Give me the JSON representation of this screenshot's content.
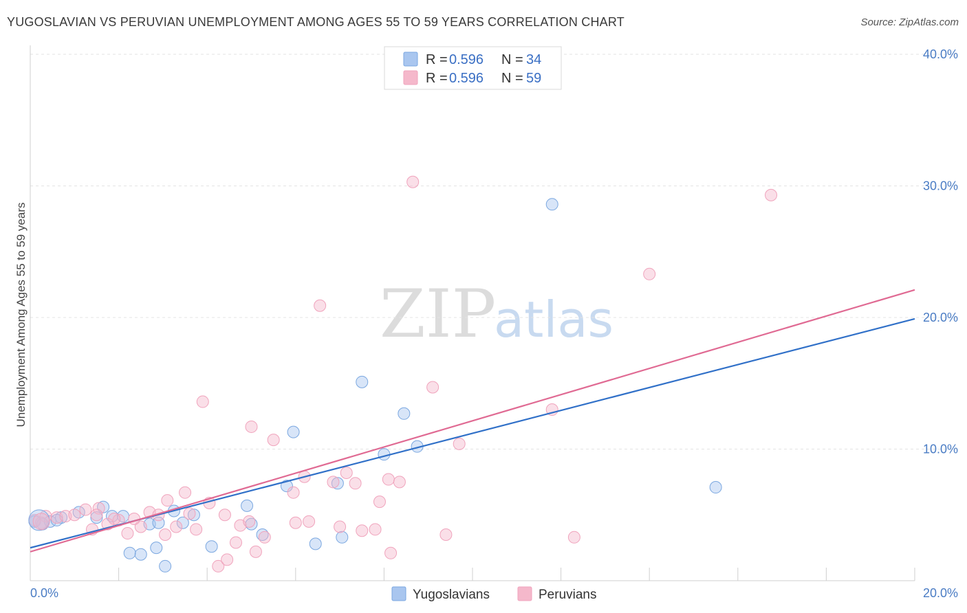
{
  "title": "YUGOSLAVIAN VS PERUVIAN UNEMPLOYMENT AMONG AGES 55 TO 59 YEARS CORRELATION CHART",
  "source": "Source: ZipAtlas.com",
  "watermark": {
    "zip": "ZIP",
    "atlas": "atlas"
  },
  "legend_top": [
    {
      "r_label": "R =",
      "r_value": "0.596",
      "n_label": "N =",
      "n_value": "34",
      "color": "#a9c6ef"
    },
    {
      "r_label": "R =",
      "r_value": "0.596",
      "n_label": "N =",
      "n_value": "59",
      "color": "#f5b8cb"
    }
  ],
  "chart_data": {
    "type": "scatter",
    "title": "YUGOSLAVIAN VS PERUVIAN UNEMPLOYMENT AMONG AGES 55 TO 59 YEARS CORRELATION CHART",
    "xlabel": "",
    "ylabel": "Unemployment Among Ages 55 to 59 years",
    "xlim": [
      0,
      20
    ],
    "ylim": [
      0,
      40
    ],
    "x_tick_labels": [
      "0.0%",
      "20.0%"
    ],
    "y_ticks": [
      10,
      20,
      30,
      40
    ],
    "y_tick_labels": [
      "10.0%",
      "20.0%",
      "30.0%",
      "40.0%"
    ],
    "series": [
      {
        "name": "Yugoslavians",
        "color": "#7aa7e0",
        "line_color": "#3070c8",
        "trend": [
          [
            0,
            2.5
          ],
          [
            20,
            19.9
          ]
        ],
        "points": [
          [
            0.1,
            4.5
          ],
          [
            0.28,
            4.3
          ],
          [
            0.45,
            4.5
          ],
          [
            0.7,
            4.8
          ],
          [
            1.1,
            5.2
          ],
          [
            1.5,
            4.8
          ],
          [
            1.85,
            4.9
          ],
          [
            2.1,
            4.9
          ],
          [
            2.25,
            2.1
          ],
          [
            2.5,
            2.0
          ],
          [
            2.7,
            4.3
          ],
          [
            2.85,
            2.5
          ],
          [
            3.05,
            1.1
          ],
          [
            3.25,
            5.3
          ],
          [
            3.45,
            4.4
          ],
          [
            3.7,
            5.0
          ],
          [
            4.1,
            2.6
          ],
          [
            4.9,
            5.7
          ],
          [
            5.0,
            4.3
          ],
          [
            5.25,
            3.5
          ],
          [
            5.8,
            7.2
          ],
          [
            5.95,
            11.3
          ],
          [
            6.45,
            2.8
          ],
          [
            6.95,
            7.4
          ],
          [
            7.05,
            3.3
          ],
          [
            7.5,
            15.1
          ],
          [
            8.0,
            9.6
          ],
          [
            8.45,
            12.7
          ],
          [
            8.75,
            10.2
          ],
          [
            11.8,
            28.6
          ],
          [
            15.5,
            7.1
          ],
          [
            0.6,
            4.6
          ],
          [
            1.65,
            5.6
          ],
          [
            2.9,
            4.4
          ]
        ]
      },
      {
        "name": "Peruvians",
        "color": "#f0a3bc",
        "line_color": "#e06a93",
        "trend": [
          [
            0,
            2.2
          ],
          [
            20,
            22.1
          ]
        ],
        "points": [
          [
            0.1,
            4.6
          ],
          [
            0.35,
            4.9
          ],
          [
            0.6,
            4.8
          ],
          [
            0.8,
            4.9
          ],
          [
            1.0,
            5.0
          ],
          [
            1.25,
            5.4
          ],
          [
            1.4,
            3.9
          ],
          [
            1.55,
            5.5
          ],
          [
            1.75,
            4.3
          ],
          [
            2.0,
            4.6
          ],
          [
            2.2,
            3.6
          ],
          [
            2.5,
            4.1
          ],
          [
            2.7,
            5.2
          ],
          [
            2.9,
            5.0
          ],
          [
            3.05,
            3.5
          ],
          [
            3.1,
            6.1
          ],
          [
            3.3,
            4.1
          ],
          [
            3.5,
            6.7
          ],
          [
            3.75,
            3.9
          ],
          [
            3.9,
            13.6
          ],
          [
            4.05,
            5.9
          ],
          [
            4.25,
            1.1
          ],
          [
            4.45,
            1.6
          ],
          [
            4.65,
            2.9
          ],
          [
            4.75,
            4.2
          ],
          [
            4.95,
            4.5
          ],
          [
            5.0,
            11.7
          ],
          [
            5.1,
            2.2
          ],
          [
            5.3,
            3.3
          ],
          [
            5.5,
            10.7
          ],
          [
            5.95,
            6.7
          ],
          [
            6.2,
            7.9
          ],
          [
            6.3,
            4.5
          ],
          [
            6.55,
            20.9
          ],
          [
            6.85,
            7.5
          ],
          [
            7.0,
            4.1
          ],
          [
            7.15,
            8.2
          ],
          [
            7.35,
            7.4
          ],
          [
            7.5,
            3.8
          ],
          [
            7.9,
            6.0
          ],
          [
            8.1,
            7.7
          ],
          [
            8.15,
            2.1
          ],
          [
            8.35,
            7.5
          ],
          [
            8.65,
            30.3
          ],
          [
            9.1,
            14.7
          ],
          [
            9.4,
            3.5
          ],
          [
            9.7,
            10.4
          ],
          [
            11.8,
            13.0
          ],
          [
            12.3,
            3.3
          ],
          [
            14.0,
            23.3
          ],
          [
            16.75,
            29.3
          ],
          [
            1.5,
            5.0
          ],
          [
            2.35,
            4.7
          ],
          [
            0.25,
            4.4
          ],
          [
            3.6,
            5.1
          ],
          [
            6.0,
            4.4
          ],
          [
            4.4,
            5.0
          ],
          [
            1.9,
            4.7
          ],
          [
            7.8,
            3.9
          ]
        ]
      }
    ]
  },
  "bottom_legend": [
    {
      "label": "Yugoslavians",
      "color": "#a9c6ef"
    },
    {
      "label": "Peruvians",
      "color": "#f5b8cb"
    }
  ]
}
